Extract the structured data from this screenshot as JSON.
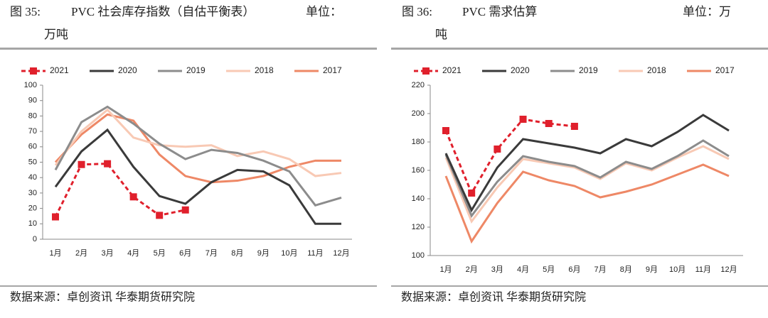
{
  "chart_data": [
    {
      "type": "line",
      "figure_label": "图 35:",
      "title": "PVC 社会库存指数（自估平衡表）",
      "unit": [
        "单位：",
        "万吨"
      ],
      "source": "数据来源：卓创资讯  华泰期货研究院",
      "categories": [
        "1月",
        "2月",
        "3月",
        "4月",
        "5月",
        "6月",
        "7月",
        "8月",
        "9月",
        "10月",
        "11月",
        "12月"
      ],
      "ylim": [
        0,
        100
      ],
      "yticks": [
        0,
        10,
        20,
        30,
        40,
        50,
        60,
        70,
        80,
        90,
        100
      ],
      "series": [
        {
          "name": "2021",
          "color": "#e0202c",
          "marker": "square",
          "dashed": true,
          "values": [
            14.5,
            48.5,
            49,
            27.5,
            15.5,
            19,
            null,
            null,
            null,
            null,
            null,
            null
          ]
        },
        {
          "name": "2020",
          "color": "#3a3a3a",
          "values": [
            34,
            57,
            71,
            47,
            28,
            23,
            37,
            45,
            44,
            35,
            10,
            10
          ]
        },
        {
          "name": "2019",
          "color": "#8c8c8c",
          "values": [
            45,
            76,
            86,
            75,
            62,
            52,
            58,
            56,
            51,
            44,
            22,
            27
          ]
        },
        {
          "name": "2018",
          "color": "#f8c9b4",
          "values": [
            48,
            70,
            84,
            66,
            61,
            60,
            61,
            54,
            57,
            52,
            41,
            43
          ]
        },
        {
          "name": "2017",
          "color": "#ee8866",
          "values": [
            50,
            68,
            81,
            77,
            55,
            41,
            37,
            38,
            41,
            47,
            51,
            51
          ]
        }
      ]
    },
    {
      "type": "line",
      "figure_label": "图 36:",
      "title": "PVC 需求估算",
      "unit": [
        "单位：万",
        "吨"
      ],
      "source": "数据来源：卓创资讯  华泰期货研究院",
      "categories": [
        "1月",
        "2月",
        "3月",
        "4月",
        "5月",
        "6月",
        "7月",
        "8月",
        "9月",
        "10月",
        "11月",
        "12月"
      ],
      "ylim": [
        100,
        220
      ],
      "yticks": [
        100,
        120,
        140,
        160,
        180,
        200,
        220
      ],
      "series": [
        {
          "name": "2021",
          "color": "#e0202c",
          "marker": "square",
          "dashed": true,
          "values": [
            188,
            144,
            175,
            196,
            193,
            191,
            null,
            null,
            null,
            null,
            null,
            null
          ]
        },
        {
          "name": "2020",
          "color": "#3a3a3a",
          "values": [
            172,
            132,
            162,
            182,
            179,
            176,
            172,
            182,
            177,
            187,
            199,
            188
          ]
        },
        {
          "name": "2019",
          "color": "#8c8c8c",
          "values": [
            171,
            128,
            152,
            170,
            166,
            163,
            155,
            166,
            161,
            170,
            181,
            170
          ]
        },
        {
          "name": "2018",
          "color": "#f8c9b4",
          "values": [
            169,
            124,
            148,
            168,
            165,
            162,
            154,
            165,
            160,
            169,
            177,
            168
          ]
        },
        {
          "name": "2017",
          "color": "#ee8866",
          "values": [
            156,
            110,
            137,
            159,
            153,
            149,
            141,
            145,
            150,
            157,
            164,
            156
          ]
        }
      ]
    }
  ]
}
